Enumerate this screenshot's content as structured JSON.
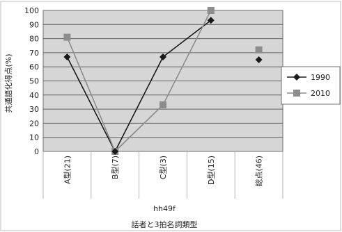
{
  "chart_data": {
    "type": "line",
    "title": "",
    "ylabel": "共通語化得点(%)",
    "xlabel_line1": "hh49f",
    "xlabel_line2": "話者と3拍名詞類型",
    "categories": [
      "A型(21)",
      "B型(7)",
      "C型(3)",
      "D型(15)",
      "総点(46)"
    ],
    "ylim": [
      0,
      100
    ],
    "yticks": [
      "0",
      "10",
      "20",
      "30",
      "40",
      "50",
      "60",
      "70",
      "80",
      "90",
      "100"
    ],
    "grid": true,
    "legend_position": "right",
    "series": [
      {
        "name": "1990",
        "marker": "diamond",
        "color": "#1a1a1a",
        "values": [
          67,
          0,
          67,
          93,
          65
        ],
        "connected": [
          true,
          true,
          true,
          false
        ]
      },
      {
        "name": "2010",
        "marker": "square",
        "color": "#8c8c8c",
        "values": [
          81,
          0,
          33,
          100,
          72
        ],
        "connected": [
          true,
          true,
          true,
          false
        ]
      }
    ]
  }
}
